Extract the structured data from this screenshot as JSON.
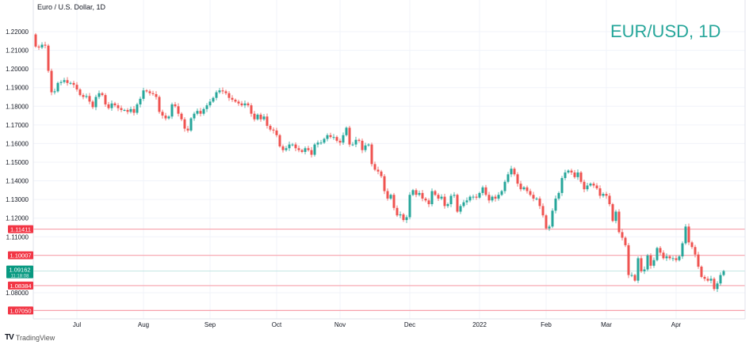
{
  "header": {
    "symbol_description": "Euro / U.S. Dollar, 1D",
    "watermark": "EUR/USD, 1D"
  },
  "footer": {
    "brand": "TradingView",
    "brand_icon": "tradingview-logo-icon"
  },
  "colors": {
    "up": "#26a69a",
    "down": "#ef5350",
    "level_line": "#f7a1ab",
    "level_tag": "#f23645",
    "price_tag": "#089981",
    "grid": "#f0f3fa"
  },
  "chart_data": {
    "type": "candlestick",
    "title": "Euro / U.S. Dollar, 1D",
    "ylim": [
      1.065,
      1.2235
    ],
    "y_ticks": [
      1.22,
      1.21,
      1.2,
      1.19,
      1.18,
      1.17,
      1.16,
      1.15,
      1.14,
      1.13,
      1.12,
      1.11,
      1.08
    ],
    "y_tick_labels": [
      "1.22000",
      "1.21000",
      "1.20000",
      "1.19000",
      "1.18000",
      "1.17000",
      "1.16000",
      "1.15000",
      "1.14000",
      "1.13000",
      "1.12000",
      "1.11000",
      "1.08000"
    ],
    "x_tick_labels": [
      "Jul",
      "Aug",
      "Sep",
      "Oct",
      "Nov",
      "Dec",
      "2022",
      "Feb",
      "Mar",
      "Apr"
    ],
    "x_tick_candle_index": [
      13,
      34,
      55,
      76,
      96,
      118,
      140,
      161,
      180,
      202
    ],
    "grid": true,
    "first_open": 1.2185,
    "closes": [
      1.212,
      1.2115,
      1.213,
      1.2125,
      1.199,
      1.1875,
      1.188,
      1.1925,
      1.193,
      1.194,
      1.1925,
      1.1925,
      1.1915,
      1.189,
      1.186,
      1.185,
      1.1855,
      1.1825,
      1.1795,
      1.185,
      1.187,
      1.186,
      1.181,
      1.179,
      1.1815,
      1.1805,
      1.179,
      1.178,
      1.178,
      1.177,
      1.1785,
      1.1765,
      1.181,
      1.184,
      1.1885,
      1.188,
      1.187,
      1.1865,
      1.185,
      1.177,
      1.175,
      1.1735,
      1.1745,
      1.181,
      1.18,
      1.176,
      1.173,
      1.168,
      1.167,
      1.1735,
      1.176,
      1.1775,
      1.176,
      1.1785,
      1.1805,
      1.1825,
      1.1845,
      1.1875,
      1.1885,
      1.188,
      1.187,
      1.1845,
      1.1835,
      1.1825,
      1.1815,
      1.1805,
      1.1815,
      1.1805,
      1.176,
      1.173,
      1.1755,
      1.173,
      1.1745,
      1.1695,
      1.1675,
      1.167,
      1.1645,
      1.1585,
      1.1565,
      1.1575,
      1.1595,
      1.1595,
      1.1575,
      1.1565,
      1.1555,
      1.1575,
      1.1565,
      1.154,
      1.1595,
      1.1605,
      1.1605,
      1.1625,
      1.1645,
      1.1635,
      1.1635,
      1.1615,
      1.1605,
      1.1645,
      1.1685,
      1.1595,
      1.1595,
      1.162,
      1.1615,
      1.1565,
      1.159,
      1.1595,
      1.149,
      1.146,
      1.145,
      1.1425,
      1.1345,
      1.1305,
      1.1325,
      1.1255,
      1.1215,
      1.122,
      1.119,
      1.1205,
      1.1325,
      1.135,
      1.1325,
      1.1335,
      1.1305,
      1.1295,
      1.1275,
      1.1345,
      1.1325,
      1.1305,
      1.1315,
      1.1265,
      1.1275,
      1.132,
      1.1325,
      1.1235,
      1.1265,
      1.1285,
      1.1295,
      1.1315,
      1.1315,
      1.131,
      1.1335,
      1.1365,
      1.1325,
      1.1295,
      1.1315,
      1.1305,
      1.1325,
      1.1345,
      1.1395,
      1.1435,
      1.1465,
      1.1435,
      1.1385,
      1.1355,
      1.1365,
      1.1345,
      1.1325,
      1.1305,
      1.1305,
      1.1265,
      1.1215,
      1.1145,
      1.1155,
      1.124,
      1.1305,
      1.1335,
      1.1415,
      1.1445,
      1.1455,
      1.1445,
      1.142,
      1.1445,
      1.1395,
      1.1355,
      1.1375,
      1.1385,
      1.1375,
      1.136,
      1.132,
      1.133,
      1.132,
      1.1275,
      1.1185,
      1.1235,
      1.1125,
      1.1095,
      1.1055,
      1.0895,
      1.0895,
      1.0865,
      1.0985,
      1.0915,
      1.0925,
      1.1,
      1.0945,
      1.0975,
      1.104,
      1.1015,
      1.0985,
      1.0995,
      1.0985,
      1.0985,
      1.0975,
      1.0995,
      1.1065,
      1.1155,
      1.107,
      1.1045,
      1.1005,
      1.094,
      1.0885,
      1.0875,
      1.0865,
      1.0875,
      1.082,
      1.085,
      1.0895,
      1.0916
    ],
    "levels": [
      {
        "value": 1.11411,
        "label": "1.11411"
      },
      {
        "value": 1.10007,
        "label": "1.10007"
      },
      {
        "value": 1.08384,
        "label": "1.08384"
      },
      {
        "value": 1.0705,
        "label": "1.07050"
      }
    ],
    "last_price": {
      "value": 1.09162,
      "label": "1.09162",
      "countdown": "11:18:08"
    }
  }
}
